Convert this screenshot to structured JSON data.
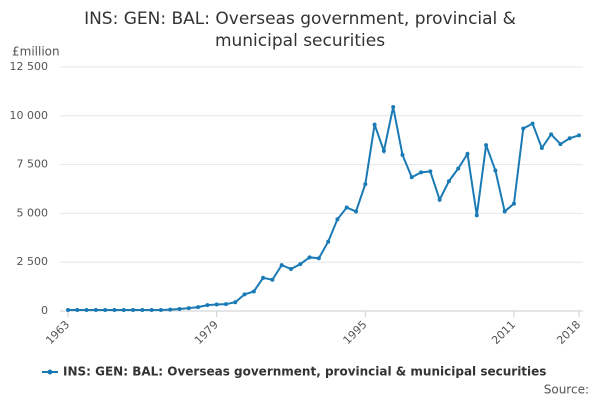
{
  "chart_data": {
    "type": "line",
    "title": "INS: GEN: BAL: Overseas government, provincial & municipal securities",
    "y_unit_label": "£million",
    "source": "Source:",
    "x": [
      1963,
      1964,
      1965,
      1966,
      1967,
      1968,
      1969,
      1970,
      1971,
      1972,
      1973,
      1974,
      1975,
      1976,
      1977,
      1978,
      1979,
      1980,
      1981,
      1982,
      1983,
      1984,
      1985,
      1986,
      1987,
      1988,
      1989,
      1990,
      1991,
      1992,
      1993,
      1994,
      1995,
      1996,
      1997,
      1998,
      1999,
      2000,
      2001,
      2002,
      2003,
      2004,
      2005,
      2006,
      2007,
      2008,
      2009,
      2010,
      2011,
      2012,
      2013,
      2014,
      2015,
      2016,
      2017,
      2018
    ],
    "series": [
      {
        "name": "INS: GEN: BAL: Overseas government, provincial & municipal securities",
        "color": "#1a7ab5",
        "values": [
          50,
          50,
          50,
          50,
          50,
          50,
          50,
          50,
          50,
          50,
          50,
          70,
          100,
          150,
          200,
          300,
          330,
          350,
          450,
          850,
          1000,
          1700,
          1600,
          2350,
          2150,
          2400,
          2750,
          2700,
          3550,
          4700,
          5300,
          5100,
          6500,
          9550,
          8200,
          10450,
          8000,
          6850,
          7100,
          7150,
          5700,
          6650,
          7300,
          8050,
          4900,
          8500,
          7200,
          5100,
          5500,
          9350,
          9600,
          8350,
          9050,
          8550,
          8850,
          9000
        ]
      }
    ],
    "xlim": [
      1963,
      2018
    ],
    "xticks": [
      1963,
      1979,
      1995,
      2011,
      2018
    ],
    "ylim": [
      0,
      12500
    ],
    "yticks": [
      0,
      {
        "value": 2500,
        "label": "2 500"
      },
      {
        "value": 5000,
        "label": "5 000"
      },
      {
        "value": 7500,
        "label": "7 500"
      },
      {
        "value": 10000,
        "label": "10 000"
      },
      {
        "value": 12500,
        "label": "12 500"
      }
    ],
    "grid": true
  }
}
